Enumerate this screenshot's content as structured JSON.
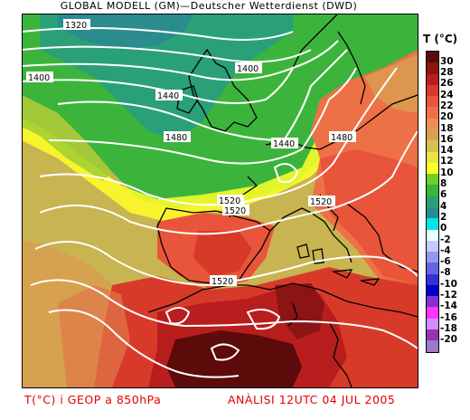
{
  "header": {
    "title": "GLOBAL MODELL (GM)—Deutscher Wetterdienst (DWD)"
  },
  "legend": {
    "title": "T (°C)",
    "colors": [
      "#5c0a0a",
      "#8c1414",
      "#b81e1e",
      "#d83a2a",
      "#e8553a",
      "#ee7046",
      "#f18c52",
      "#d8a050",
      "#d8c050",
      "#e8e640",
      "#ffff28",
      "#6ad22a",
      "#3cb43c",
      "#2aa078",
      "#2a8c8c",
      "#00e6e6",
      "#e8ffff",
      "#c8c8ff",
      "#9696f0",
      "#6464e6",
      "#3232d2",
      "#0000c8",
      "#8232d2",
      "#ff32ff",
      "#d28cff",
      "#9632b4",
      "#a078c8"
    ],
    "labels": [
      "30",
      "28",
      "26",
      "24",
      "22",
      "20",
      "18",
      "16",
      "14",
      "12",
      "10",
      "8",
      "6",
      "4",
      "2",
      "0",
      "-2",
      "-4",
      "-6",
      "-8",
      "-10",
      "-12",
      "-14",
      "-16",
      "-18",
      "-20"
    ]
  },
  "map": {
    "contour_labels": [
      {
        "text": "1320"
      },
      {
        "text": "1400"
      },
      {
        "text": "1400"
      },
      {
        "text": "1440"
      },
      {
        "text": "1480"
      },
      {
        "text": "1440"
      },
      {
        "text": "1480"
      },
      {
        "text": "1520"
      },
      {
        "text": "1520"
      },
      {
        "text": "1520"
      },
      {
        "text": "1520"
      }
    ]
  },
  "footer": {
    "left": "T(°C) i GEOP a 850hPa",
    "right": "ANÀLISI 12UTC 04 JUL 2005"
  }
}
